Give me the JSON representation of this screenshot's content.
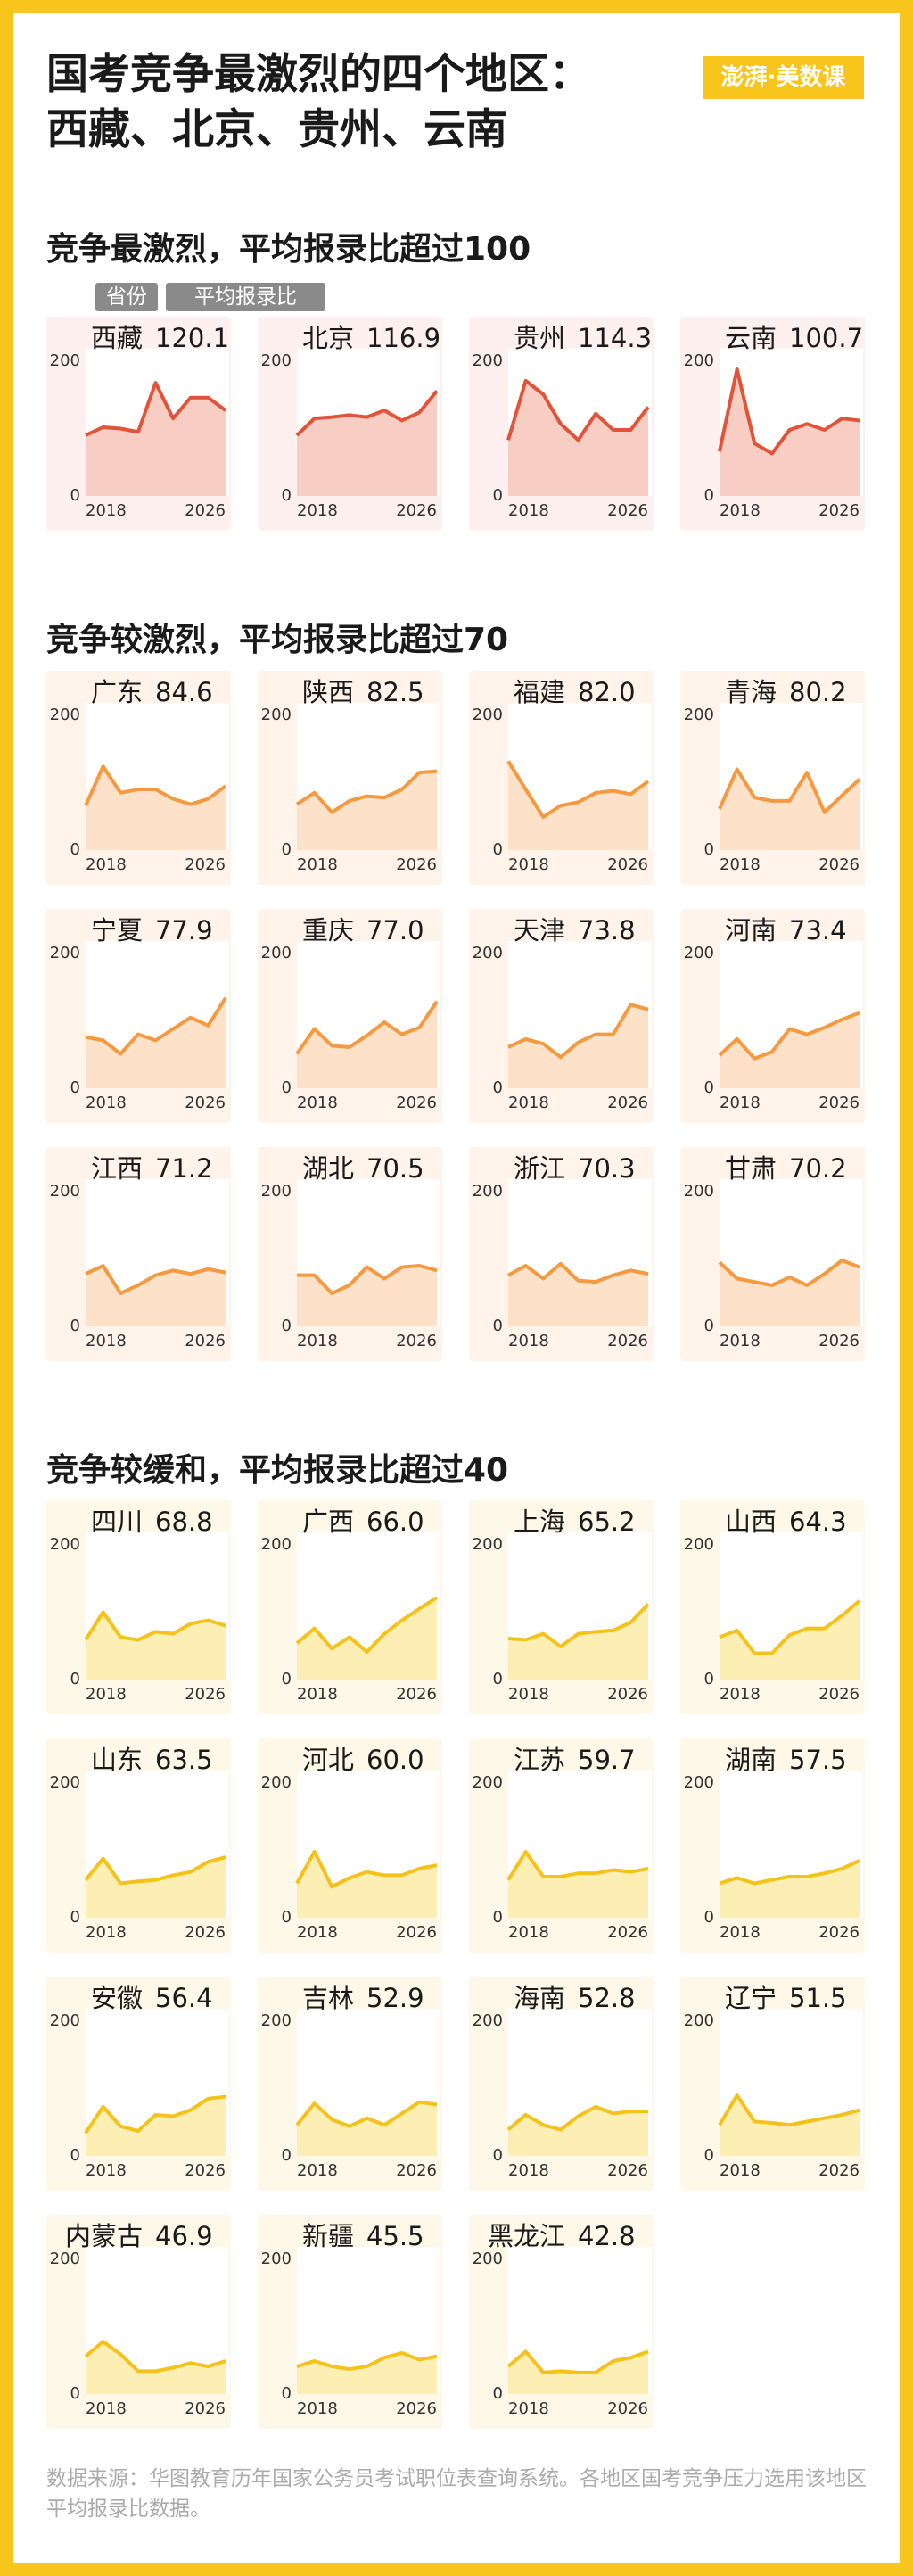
{
  "title_lines": [
    "国考竞争最激烈的四个地区：",
    "西藏、北京、贵州、云南"
  ],
  "logo": "澎湃·美数课",
  "legend": {
    "name": "省份",
    "value": "平均报录比"
  },
  "axes": {
    "x": [
      2018,
      2019,
      2020,
      2021,
      2022,
      2023,
      2024,
      2025,
      2026
    ],
    "xlim": [
      2018,
      2026
    ],
    "xticks": [
      2018,
      2026
    ],
    "ylim": [
      0,
      200
    ],
    "yticks": [
      0,
      200
    ]
  },
  "sections": [
    {
      "title": "竞争最激烈，平均报录比超过100",
      "color": "#e2543a",
      "fill": "#f7cdc4",
      "background": "#fdf0ee",
      "charts": [
        {
          "type": "line",
          "name": "西藏",
          "average": {
            "value": 120.1,
            "label": "120.1"
          },
          "values": [
            90,
            102,
            100,
            95,
            168,
            115,
            146,
            146,
            127
          ]
        },
        {
          "type": "line",
          "name": "北京",
          "average": {
            "value": 116.9,
            "label": "116.9"
          },
          "values": [
            90,
            115,
            117,
            120,
            117,
            127,
            112,
            124,
            156
          ]
        },
        {
          "type": "line",
          "name": "贵州",
          "average": {
            "value": 114.3,
            "label": "114.3"
          },
          "values": [
            83,
            171,
            151,
            107,
            83,
            122,
            98,
            98,
            132
          ]
        },
        {
          "type": "line",
          "name": "云南",
          "average": {
            "value": 100.7,
            "label": "100.7"
          },
          "values": [
            66,
            188,
            78,
            63,
            98,
            107,
            98,
            115,
            112
          ]
        }
      ]
    },
    {
      "title": "竞争较激烈，平均报录比超过70",
      "color": "#f59a40",
      "fill": "#fde1c9",
      "background": "#fff3ea",
      "charts": [
        {
          "type": "line",
          "name": "广东",
          "average": {
            "value": 84.6,
            "label": "84.6"
          },
          "values": [
            66,
            124,
            85,
            90,
            90,
            76,
            68,
            76,
            95
          ]
        },
        {
          "type": "line",
          "name": "陕西",
          "average": {
            "value": 82.5,
            "label": "82.5"
          },
          "values": [
            68,
            85,
            56,
            73,
            80,
            78,
            90,
            115,
            117
          ]
        },
        {
          "type": "line",
          "name": "福建",
          "average": {
            "value": 82,
            "label": "82.0"
          },
          "values": [
            132,
            90,
            49,
            66,
            71,
            85,
            88,
            83,
            102
          ]
        },
        {
          "type": "line",
          "name": "青海",
          "average": {
            "value": 80.2,
            "label": "80.2"
          },
          "values": [
            61,
            120,
            78,
            73,
            73,
            115,
            56,
            81,
            105
          ]
        },
        {
          "type": "line",
          "name": "宁夏",
          "average": {
            "value": 77.9,
            "label": "77.9"
          },
          "values": [
            76,
            71,
            51,
            80,
            71,
            88,
            105,
            93,
            134
          ]
        },
        {
          "type": "line",
          "name": "重庆",
          "average": {
            "value": 77,
            "label": "77.0"
          },
          "values": [
            51,
            88,
            63,
            61,
            78,
            98,
            80,
            90,
            129
          ]
        },
        {
          "type": "line",
          "name": "天津",
          "average": {
            "value": 73.8,
            "label": "73.8"
          },
          "values": [
            61,
            73,
            66,
            46,
            68,
            80,
            80,
            124,
            117
          ]
        },
        {
          "type": "line",
          "name": "河南",
          "average": {
            "value": 73.4,
            "label": "73.4"
          },
          "values": [
            49,
            73,
            44,
            54,
            88,
            80,
            90,
            102,
            112
          ]
        },
        {
          "type": "line",
          "name": "江西",
          "average": {
            "value": 71.2,
            "label": "71.2"
          },
          "values": [
            78,
            90,
            49,
            61,
            76,
            83,
            78,
            85,
            80
          ]
        },
        {
          "type": "line",
          "name": "湖北",
          "average": {
            "value": 70.5,
            "label": "70.5"
          },
          "values": [
            76,
            76,
            49,
            61,
            88,
            71,
            88,
            90,
            83
          ]
        },
        {
          "type": "line",
          "name": "浙江",
          "average": {
            "value": 70.3,
            "label": "70.3"
          },
          "values": [
            76,
            90,
            71,
            93,
            68,
            66,
            76,
            83,
            78
          ]
        },
        {
          "type": "line",
          "name": "甘肃",
          "average": {
            "value": 70.2,
            "label": "70.2"
          },
          "values": [
            95,
            71,
            66,
            61,
            73,
            61,
            78,
            98,
            88
          ]
        }
      ]
    },
    {
      "title": "竞争较缓和，平均报录比超过40",
      "color": "#f5c21c",
      "fill": "#fdeeb3",
      "background": "#fef8e8",
      "charts": [
        {
          "type": "line",
          "name": "四川",
          "average": {
            "value": 68.8,
            "label": "68.8"
          },
          "values": [
            59,
            100,
            63,
            59,
            71,
            68,
            83,
            88,
            80
          ]
        },
        {
          "type": "line",
          "name": "广西",
          "average": {
            "value": 66,
            "label": "66.0"
          },
          "values": [
            54,
            76,
            46,
            63,
            41,
            68,
            88,
            105,
            122
          ]
        },
        {
          "type": "line",
          "name": "上海",
          "average": {
            "value": 65.2,
            "label": "65.2"
          },
          "values": [
            61,
            59,
            68,
            49,
            68,
            71,
            73,
            85,
            112
          ]
        },
        {
          "type": "line",
          "name": "山西",
          "average": {
            "value": 64.3,
            "label": "64.3"
          },
          "values": [
            63,
            73,
            39,
            39,
            66,
            76,
            76,
            95,
            117
          ]
        },
        {
          "type": "line",
          "name": "山东",
          "average": {
            "value": 63.5,
            "label": "63.5"
          },
          "values": [
            56,
            88,
            51,
            54,
            56,
            63,
            68,
            83,
            90
          ]
        },
        {
          "type": "line",
          "name": "河北",
          "average": {
            "value": 60,
            "label": "60.0"
          },
          "values": [
            51,
            98,
            46,
            59,
            68,
            63,
            63,
            73,
            78
          ]
        },
        {
          "type": "line",
          "name": "江苏",
          "average": {
            "value": 59.7,
            "label": "59.7"
          },
          "values": [
            56,
            98,
            61,
            61,
            66,
            66,
            71,
            68,
            73
          ]
        },
        {
          "type": "line",
          "name": "湖南",
          "average": {
            "value": 57.5,
            "label": "57.5"
          },
          "values": [
            51,
            59,
            51,
            56,
            61,
            61,
            66,
            73,
            85
          ]
        },
        {
          "type": "line",
          "name": "安徽",
          "average": {
            "value": 56.4,
            "label": "56.4"
          },
          "values": [
            34,
            73,
            44,
            37,
            61,
            59,
            68,
            85,
            88
          ]
        },
        {
          "type": "line",
          "name": "吉林",
          "average": {
            "value": 52.9,
            "label": "52.9"
          },
          "values": [
            46,
            78,
            54,
            44,
            56,
            46,
            63,
            80,
            76
          ]
        },
        {
          "type": "line",
          "name": "海南",
          "average": {
            "value": 52.8,
            "label": "52.8"
          },
          "values": [
            39,
            61,
            46,
            39,
            59,
            73,
            63,
            66,
            66
          ]
        },
        {
          "type": "line",
          "name": "辽宁",
          "average": {
            "value": 51.5,
            "label": "51.5"
          },
          "values": [
            46,
            90,
            51,
            49,
            46,
            51,
            56,
            61,
            68
          ]
        },
        {
          "type": "line",
          "name": "内蒙古",
          "average": {
            "value": 46.9,
            "label": "46.9"
          },
          "values": [
            56,
            78,
            59,
            34,
            34,
            39,
            46,
            41,
            49
          ]
        },
        {
          "type": "line",
          "name": "新疆",
          "average": {
            "value": 45.5,
            "label": "45.5"
          },
          "values": [
            41,
            49,
            41,
            37,
            41,
            54,
            61,
            51,
            56
          ]
        },
        {
          "type": "line",
          "name": "黑龙江",
          "average": {
            "value": 42.8,
            "label": "42.8"
          },
          "values": [
            41,
            63,
            32,
            34,
            32,
            32,
            49,
            54,
            63
          ]
        }
      ]
    }
  ],
  "source": "数据来源：华图教育历年国家公务员考试职位表查询系统。各地区国考竞争压力选用该地区平均报录比数据。"
}
